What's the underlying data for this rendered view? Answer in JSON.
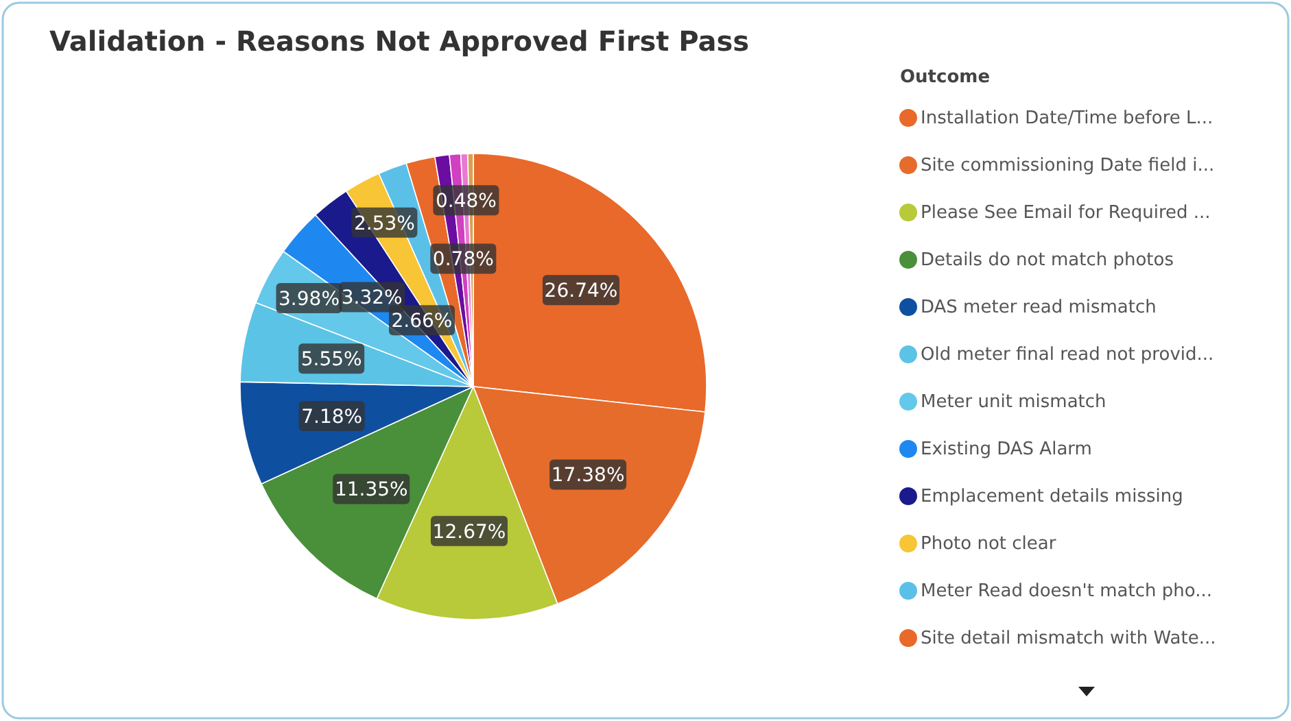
{
  "chart_data": {
    "type": "pie",
    "title": "Validation - Reasons Not Approved First Pass",
    "legend_title": "Outcome",
    "legend": "right",
    "categories": [
      "Installation Date/Time before L...",
      "Site commissioning Date field i...",
      "Please See Email for Required ...",
      "Details do not match photos",
      "DAS meter read mismatch",
      "Old meter final read not provid...",
      "Meter unit mismatch",
      "Existing DAS Alarm",
      "Emplacement details missing",
      "Photo not clear",
      "Meter Read doesn't match pho...",
      "Site detail mismatch with Wate...",
      null,
      null,
      null,
      null
    ],
    "values": [
      26.74,
      17.38,
      12.67,
      11.35,
      7.18,
      5.55,
      3.98,
      3.32,
      2.66,
      2.53,
      2.0,
      2.0,
      1.0,
      0.78,
      0.48,
      0.38
    ],
    "colors": [
      "#e8692a",
      "#e66c2c",
      "#b8c93a",
      "#4a8f3a",
      "#0f4fa0",
      "#5bc3e6",
      "#63c8ea",
      "#1e88f0",
      "#1a1a8c",
      "#f7c535",
      "#5bc0e8",
      "#e8692a",
      "#6a0da0",
      "#d040c0",
      "#e87ad0",
      "#d9a050"
    ],
    "value_labels": [
      "26.74%",
      "17.38%",
      "12.67%",
      "11.35%",
      "7.18%",
      "5.55%",
      "3.98%",
      "3.32%",
      "2.66%",
      "2.53%",
      null,
      null,
      null,
      "0.78%",
      "0.48%",
      null
    ]
  }
}
